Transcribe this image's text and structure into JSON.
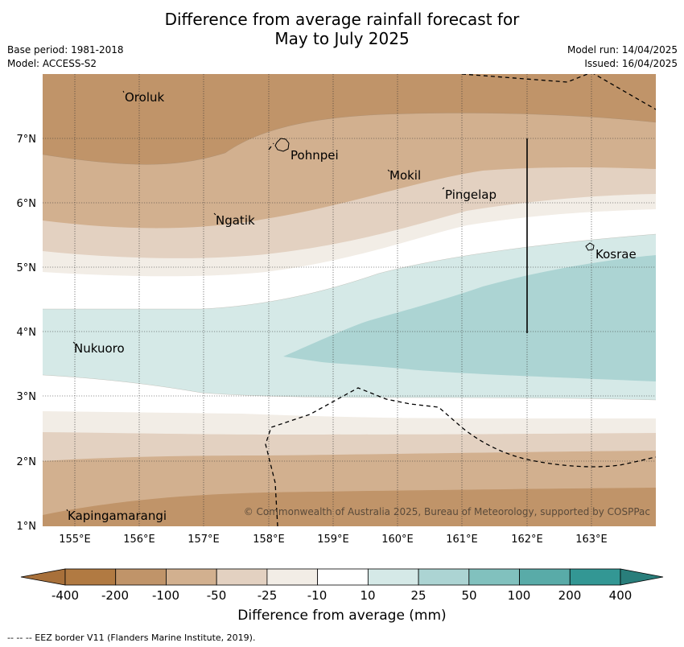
{
  "title_line1": "Difference from average rainfall forecast for",
  "title_line2": "May to July 2025",
  "meta_left": [
    "Base period: 1981-2018",
    "Model: ACCESS-S2"
  ],
  "meta_right": [
    "Model run: 14/04/2025",
    "Issued: 16/04/2025"
  ],
  "longitudes": [
    "155°E",
    "156°E",
    "157°E",
    "158°E",
    "159°E",
    "160°E",
    "161°E",
    "162°E",
    "163°E"
  ],
  "latitudes": [
    "7°N",
    "6°N",
    "5°N",
    "4°N",
    "3°N",
    "2°N",
    "1°N"
  ],
  "places": [
    {
      "name": "Oroluk"
    },
    {
      "name": "Pohnpei"
    },
    {
      "name": "Mokil"
    },
    {
      "name": "Pingelap"
    },
    {
      "name": "Ngatik"
    },
    {
      "name": "Kosrae"
    },
    {
      "name": "Nukuoro"
    },
    {
      "name": "Kapingamarangi"
    }
  ],
  "copyright": "© Commonwealth of Australia 2025, Bureau of Meteorology, supported by COSPPac",
  "legend": {
    "ticks": [
      "-400",
      "-200",
      "-100",
      "-50",
      "-25",
      "-10",
      "10",
      "25",
      "50",
      "100",
      "200",
      "400"
    ],
    "colors": [
      "#a8703a",
      "#b17a42",
      "#c09469",
      "#d2b08f",
      "#e3d1c1",
      "#f2ede6",
      "#ffffff",
      "#d5e9e7",
      "#acd4d3",
      "#81c1be",
      "#59aba8",
      "#339794",
      "#297e7b"
    ],
    "title": "Difference from average (mm)"
  },
  "footnote": "--  --  -- EEZ border V11 (Flanders Marine Institute, 2019)."
}
